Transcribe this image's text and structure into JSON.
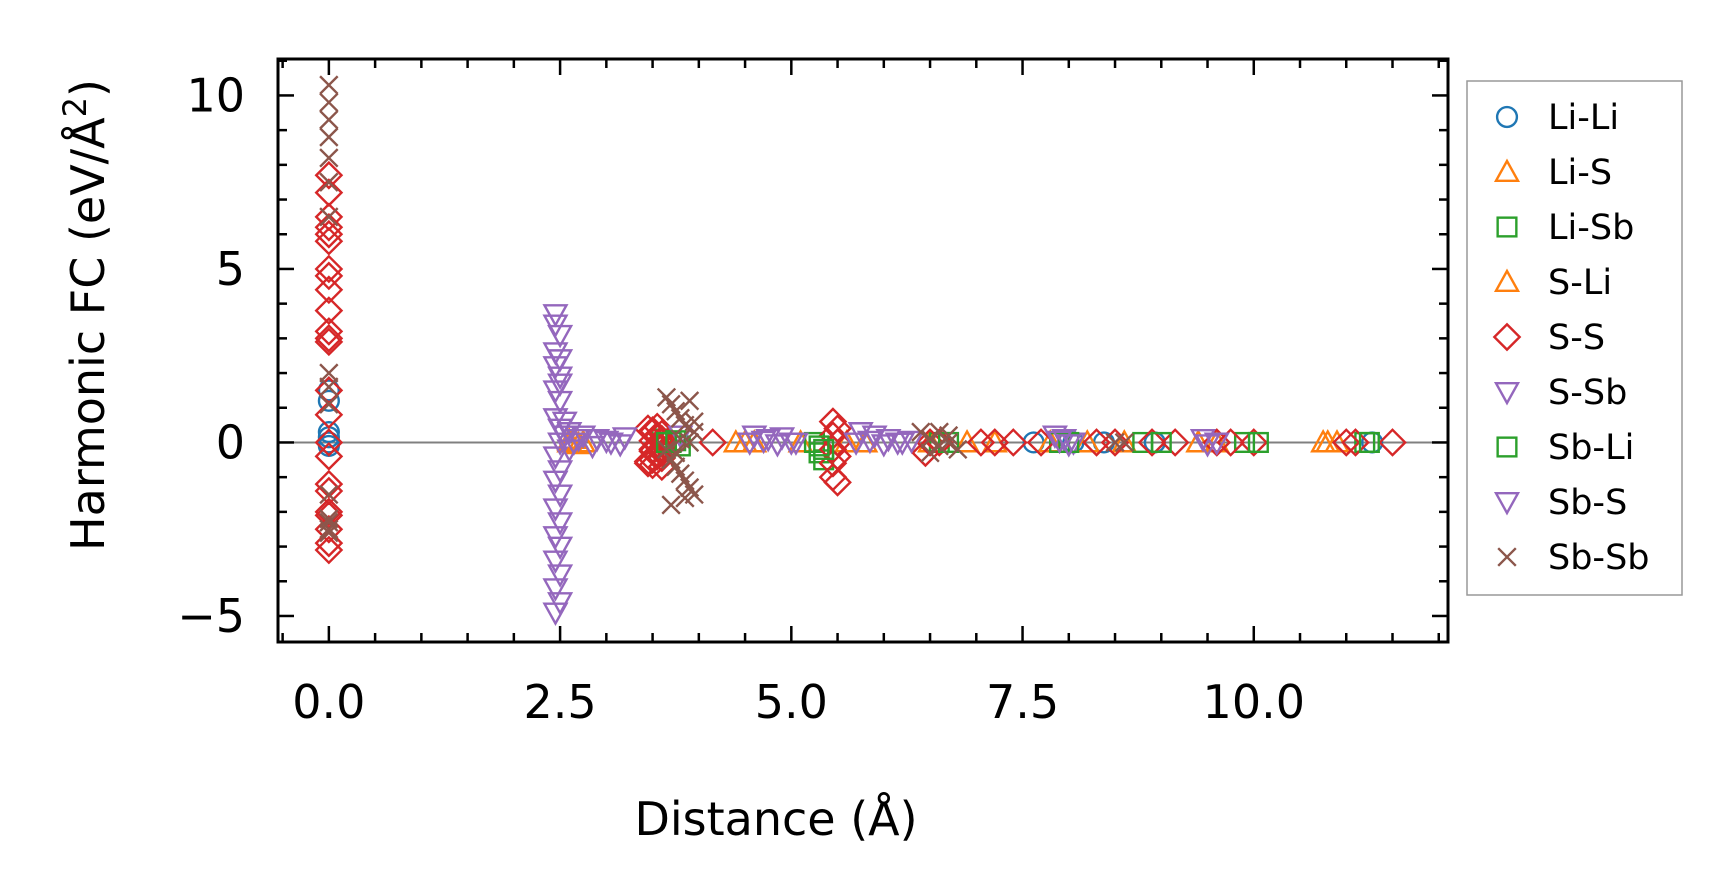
{
  "chart_data": {
    "type": "scatter",
    "xlabel": "Distance (Å)",
    "ylabel_main": "Harmonic FC (eV/Å",
    "ylabel_sup": "2",
    "ylabel_end": ")",
    "xlim": [
      -0.55,
      12.1
    ],
    "ylim": [
      -5.75,
      11.05
    ],
    "xticks": [
      0.0,
      2.5,
      5.0,
      7.5,
      10.0
    ],
    "xtick_labels": [
      "0.0",
      "2.5",
      "5.0",
      "7.5",
      "10.0"
    ],
    "yticks": [
      -5,
      0,
      5,
      10
    ],
    "ytick_labels": [
      "−5",
      "0",
      "5",
      "10"
    ],
    "reference_line_y": 0,
    "legend_position": "outside-right",
    "series": [
      {
        "name": "Li-Li",
        "marker": "circle",
        "color": "#1f77b4",
        "x": [
          0.0,
          0.0,
          0.0,
          0.0,
          0.0,
          0.0,
          7.62,
          8.05,
          8.38,
          8.93,
          11.28
        ],
        "y": [
          1.5,
          1.2,
          0.3,
          0.15,
          0.0,
          -0.1,
          0.0,
          0.0,
          0.0,
          0.0,
          0.0
        ]
      },
      {
        "name": "Li-S",
        "marker": "triangle-up",
        "color": "#ff7f0e",
        "x": [
          2.6,
          2.65,
          2.7,
          4.4,
          4.6,
          5.1,
          5.8,
          6.5,
          7.2,
          7.8,
          8.6,
          9.4,
          10.75,
          10.9
        ],
        "y": [
          0.0,
          0.1,
          -0.05,
          0.0,
          0.0,
          0.0,
          0.0,
          0.0,
          0.0,
          0.0,
          0.0,
          0.0,
          0.0,
          0.0
        ]
      },
      {
        "name": "Li-Sb",
        "marker": "square",
        "color": "#2ca02c",
        "x": [
          3.6,
          3.7,
          3.8,
          5.25,
          5.3,
          5.35,
          6.6,
          7.9,
          8.8,
          9.9,
          11.2
        ],
        "y": [
          0.1,
          0.0,
          -0.1,
          0.0,
          -0.3,
          -0.5,
          0.0,
          0.0,
          0.0,
          0.0,
          0.0
        ]
      },
      {
        "name": "S-Li",
        "marker": "triangle-up",
        "color": "#ff7f0e",
        "x": [
          2.6,
          2.75,
          4.5,
          5.6,
          6.9,
          8.2,
          9.6,
          10.8
        ],
        "y": [
          0.05,
          0.0,
          0.0,
          0.0,
          0.0,
          0.0,
          0.0,
          0.0
        ]
      },
      {
        "name": "S-S",
        "marker": "diamond",
        "color": "#d62728",
        "x": [
          0.0,
          0.0,
          0.0,
          0.0,
          0.0,
          0.0,
          0.0,
          0.0,
          0.0,
          0.0,
          0.0,
          0.0,
          0.0,
          0.0,
          0.0,
          0.0,
          0.0,
          0.0,
          0.0,
          0.0,
          0.0,
          0.0,
          0.0,
          0.0,
          3.45,
          3.5,
          3.55,
          3.6,
          3.6,
          3.55,
          3.5,
          3.6,
          3.55,
          3.5,
          3.45,
          3.6,
          3.55,
          3.5,
          3.6,
          3.55,
          3.5,
          3.55,
          3.6,
          3.5,
          3.55,
          3.6,
          3.45,
          3.5,
          4.15,
          5.45,
          5.5,
          5.45,
          5.5,
          5.45,
          5.5,
          5.45,
          5.45,
          5.5,
          6.45,
          6.5,
          6.6,
          7.05,
          7.2,
          7.4,
          7.7,
          8.3,
          8.5,
          8.9,
          9.15,
          9.6,
          9.75,
          10.0,
          11.0,
          11.1,
          11.5
        ],
        "y": [
          7.7,
          7.2,
          6.5,
          6.2,
          6.0,
          5.8,
          5.0,
          4.8,
          4.4,
          3.8,
          3.2,
          3.0,
          2.9,
          1.5,
          0.8,
          0.0,
          -0.4,
          -1.2,
          -1.4,
          -2.0,
          -2.1,
          -2.5,
          -2.9,
          -3.1,
          0.4,
          0.3,
          0.2,
          0.1,
          0.0,
          -0.1,
          -0.2,
          -0.3,
          -0.4,
          -0.5,
          -0.6,
          -0.7,
          0.45,
          0.35,
          0.25,
          0.15,
          0.05,
          -0.05,
          -0.15,
          -0.25,
          -0.35,
          -0.45,
          -0.55,
          -0.65,
          0.0,
          0.6,
          0.4,
          0.2,
          0.0,
          -0.2,
          -0.4,
          -0.6,
          -1.0,
          -1.15,
          -0.3,
          0.0,
          0.0,
          0.0,
          0.0,
          0.0,
          0.0,
          0.0,
          0.0,
          0.0,
          0.0,
          0.0,
          0.0,
          0.0,
          0.0,
          0.0,
          0.0
        ]
      },
      {
        "name": "S-Sb",
        "marker": "triangle-down",
        "color": "#9467bd",
        "x": [
          2.45,
          2.45,
          2.5,
          2.45,
          2.5,
          2.45,
          2.5,
          2.5,
          2.45,
          2.5,
          2.45,
          2.5,
          2.5,
          2.45,
          2.5,
          2.45,
          2.5,
          2.45,
          2.5,
          2.45,
          2.5,
          2.45,
          2.5,
          2.45,
          2.5,
          2.45,
          2.55,
          2.6,
          2.65,
          2.75,
          2.9,
          3.05,
          3.2,
          3.8,
          4.6,
          4.75,
          4.9,
          5.05,
          5.75,
          5.9,
          6.05,
          6.2,
          7.85,
          7.95,
          8.05,
          9.45,
          9.6
        ],
        "y": [
          3.7,
          3.4,
          3.1,
          2.6,
          2.4,
          2.2,
          1.9,
          1.7,
          1.5,
          1.2,
          0.7,
          0.4,
          0.0,
          -0.4,
          -0.8,
          -1.1,
          -1.5,
          -1.9,
          -2.3,
          -2.7,
          -3.0,
          -3.4,
          -3.8,
          -4.2,
          -4.6,
          -4.9,
          0.6,
          0.3,
          0.0,
          0.2,
          0.1,
          0.0,
          0.15,
          0.2,
          0.2,
          0.1,
          0.15,
          0.0,
          0.3,
          0.2,
          0.1,
          0.0,
          0.2,
          0.1,
          0.0,
          0.1,
          0.0
        ]
      },
      {
        "name": "Sb-Li",
        "marker": "square",
        "color": "#2ca02c",
        "x": [
          3.65,
          3.75,
          5.3,
          5.35,
          6.7,
          8.0,
          9.0,
          10.05,
          11.25
        ],
        "y": [
          0.0,
          0.05,
          -0.1,
          -0.2,
          0.0,
          0.0,
          0.0,
          0.0,
          0.0
        ]
      },
      {
        "name": "Sb-S",
        "marker": "triangle-down",
        "color": "#9467bd",
        "x": [
          2.55,
          2.6,
          2.7,
          2.85,
          3.0,
          3.15,
          4.55,
          4.7,
          4.85,
          5.0,
          5.7,
          5.85,
          6.0,
          6.15,
          6.3,
          7.9,
          8.0,
          9.5
        ],
        "y": [
          0.2,
          -0.2,
          0.1,
          -0.1,
          0.05,
          -0.05,
          0.0,
          0.05,
          -0.05,
          0.0,
          0.0,
          0.05,
          -0.05,
          0.0,
          0.05,
          0.05,
          -0.05,
          -0.05
        ]
      },
      {
        "name": "Sb-Sb",
        "marker": "x",
        "color": "#8c564b",
        "x": [
          0.0,
          0.0,
          0.0,
          0.0,
          0.0,
          0.0,
          0.0,
          0.0,
          0.0,
          0.0,
          0.0,
          0.0,
          0.0,
          0.0,
          0.0,
          3.65,
          3.7,
          3.75,
          3.8,
          3.85,
          3.9,
          3.95,
          3.65,
          3.7,
          3.75,
          3.8,
          3.85,
          3.9,
          3.95,
          3.7,
          3.8,
          3.9,
          3.75,
          3.85,
          3.95,
          6.4,
          6.5,
          6.6,
          6.7,
          6.8,
          6.5,
          6.6,
          6.7,
          8.5,
          8.6
        ],
        "y": [
          10.3,
          9.8,
          9.3,
          8.8,
          8.2,
          7.5,
          6.5,
          2.0,
          1.6,
          1.1,
          -1.5,
          -2.2,
          -2.3,
          -2.5,
          -2.6,
          1.3,
          1.1,
          0.9,
          0.7,
          0.5,
          1.2,
          0.3,
          -0.2,
          -0.5,
          -0.7,
          -0.9,
          -1.1,
          -1.3,
          -1.5,
          -1.8,
          0.1,
          0.0,
          -0.3,
          -1.6,
          0.6,
          0.3,
          0.1,
          -0.1,
          0.2,
          -0.2,
          -0.3,
          0.3,
          0.0,
          0.0,
          0.0
        ]
      }
    ]
  }
}
